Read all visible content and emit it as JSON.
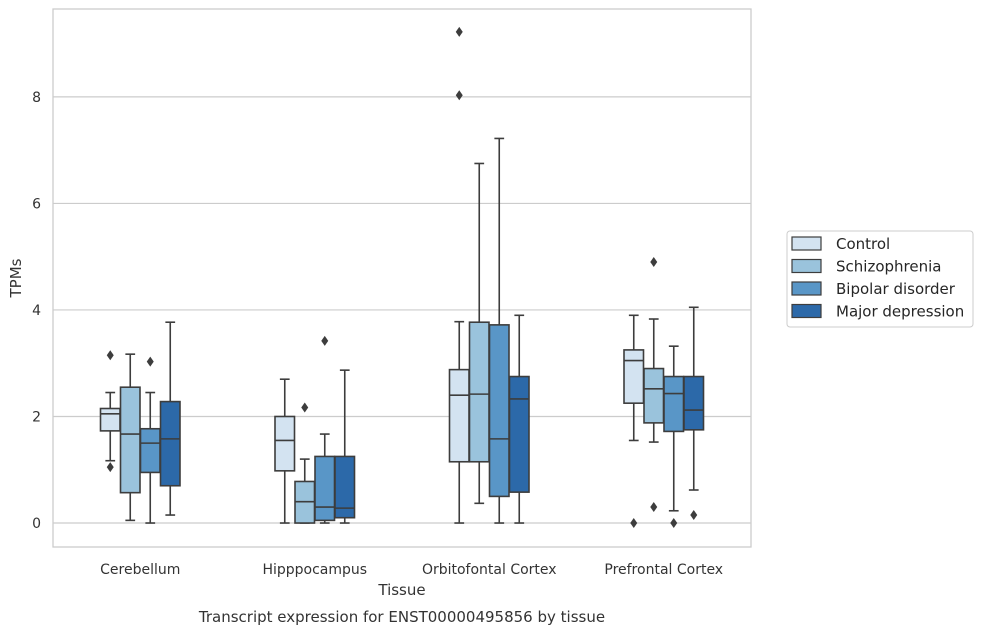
{
  "chart_data": {
    "type": "boxplot",
    "xlabel": "Tissue",
    "ylabel": "TPMs",
    "caption": "Transcript expression for ENST00000495856 by tissue",
    "ylim": [
      -0.45,
      9.65
    ],
    "yticks": [
      0,
      2,
      4,
      6,
      8
    ],
    "grid": "horizontal",
    "legend_placement": "right",
    "categories": [
      "Cerebellum",
      "Hipppocampus",
      "Orbitofontal Cortex",
      "Prefrontal Cortex"
    ],
    "series": [
      {
        "name": "Control",
        "color": "#d3e3f1",
        "boxes": [
          {
            "whislo": 1.17,
            "q1": 1.73,
            "med": 2.05,
            "q3": 2.15,
            "whishi": 2.45,
            "fliers": [
              3.15,
              1.05
            ]
          },
          {
            "whislo": 0.0,
            "q1": 0.98,
            "med": 1.55,
            "q3": 2.0,
            "whishi": 2.7,
            "fliers": []
          },
          {
            "whislo": 0.0,
            "q1": 1.15,
            "med": 2.4,
            "q3": 2.88,
            "whishi": 3.78,
            "fliers": [
              9.22,
              8.03
            ]
          },
          {
            "whislo": 1.55,
            "q1": 2.25,
            "med": 3.05,
            "q3": 3.25,
            "whishi": 3.9,
            "fliers": [
              0.0
            ]
          }
        ]
      },
      {
        "name": "Schizophrenia",
        "color": "#9ac3dc",
        "boxes": [
          {
            "whislo": 0.05,
            "q1": 0.57,
            "med": 1.67,
            "q3": 2.55,
            "whishi": 3.17,
            "fliers": []
          },
          {
            "whislo": 0.0,
            "q1": 0.0,
            "med": 0.4,
            "q3": 0.78,
            "whishi": 1.2,
            "fliers": [
              2.17
            ]
          },
          {
            "whislo": 0.37,
            "q1": 1.15,
            "med": 2.42,
            "q3": 3.77,
            "whishi": 6.75,
            "fliers": []
          },
          {
            "whislo": 1.52,
            "q1": 1.88,
            "med": 2.52,
            "q3": 2.9,
            "whishi": 3.83,
            "fliers": [
              4.9,
              0.3
            ]
          }
        ]
      },
      {
        "name": "Bipolar disorder",
        "color": "#5996c7",
        "boxes": [
          {
            "whislo": 0.0,
            "q1": 0.95,
            "med": 1.5,
            "q3": 1.77,
            "whishi": 2.45,
            "fliers": [
              3.03
            ]
          },
          {
            "whislo": 0.0,
            "q1": 0.05,
            "med": 0.3,
            "q3": 1.25,
            "whishi": 1.67,
            "fliers": [
              3.42
            ]
          },
          {
            "whislo": 0.0,
            "q1": 0.5,
            "med": 1.58,
            "q3": 3.72,
            "whishi": 7.22,
            "fliers": []
          },
          {
            "whislo": 0.23,
            "q1": 1.72,
            "med": 2.43,
            "q3": 2.75,
            "whishi": 3.32,
            "fliers": [
              0.0
            ]
          }
        ]
      },
      {
        "name": "Major depression",
        "color": "#2c69a9",
        "boxes": [
          {
            "whislo": 0.15,
            "q1": 0.7,
            "med": 1.58,
            "q3": 2.28,
            "whishi": 3.77,
            "fliers": []
          },
          {
            "whislo": 0.0,
            "q1": 0.1,
            "med": 0.28,
            "q3": 1.25,
            "whishi": 2.87,
            "fliers": []
          },
          {
            "whislo": 0.0,
            "q1": 0.58,
            "med": 2.33,
            "q3": 2.75,
            "whishi": 3.9,
            "fliers": []
          },
          {
            "whislo": 0.62,
            "q1": 1.75,
            "med": 2.12,
            "q3": 2.75,
            "whishi": 4.05,
            "fliers": [
              0.15
            ]
          }
        ]
      }
    ]
  }
}
